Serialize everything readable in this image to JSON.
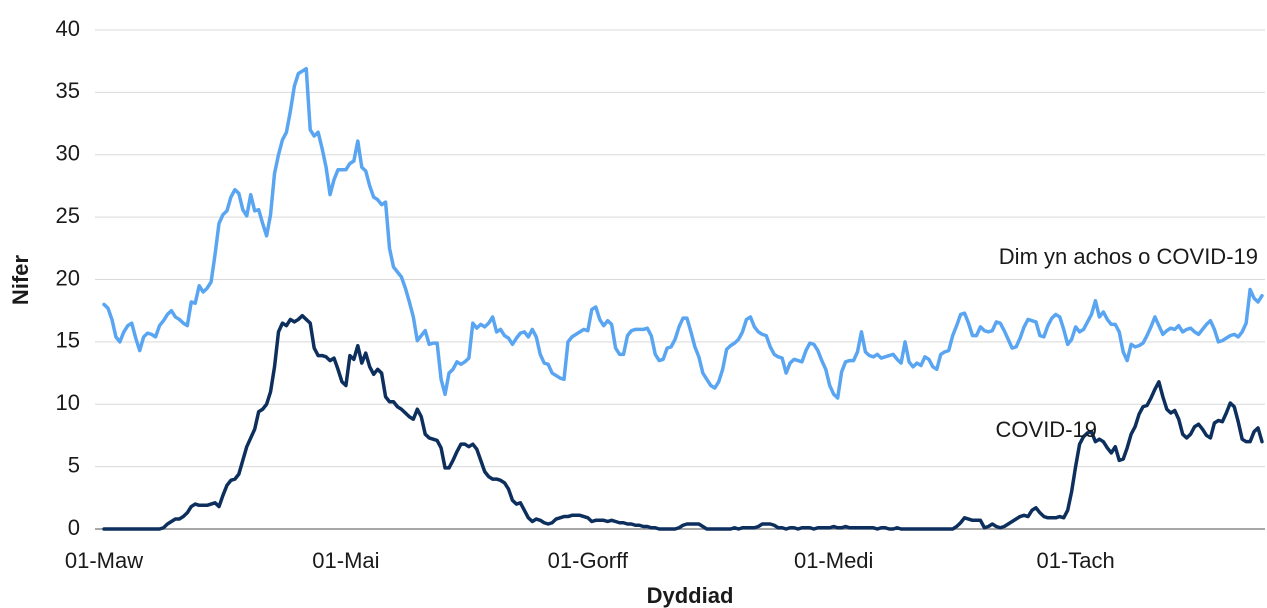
{
  "chart_data": {
    "type": "line",
    "x_label": "Dyddiad",
    "y_label": "Nifer",
    "ylim": [
      0,
      40
    ],
    "yticks": [
      0,
      5,
      10,
      15,
      20,
      25,
      30,
      35,
      40
    ],
    "grid": true,
    "categories": [
      "01-Maw",
      null,
      null,
      null,
      null,
      null,
      null,
      null,
      null,
      null,
      null,
      null,
      null,
      null,
      null,
      null,
      null,
      null,
      null,
      null,
      null,
      null,
      null,
      null,
      null,
      null,
      null,
      null,
      null,
      null,
      null,
      null,
      null,
      null,
      null,
      null,
      null,
      null,
      null,
      null,
      null,
      null,
      null,
      null,
      null,
      null,
      null,
      null,
      null,
      null,
      null,
      null,
      null,
      null,
      null,
      null,
      null,
      null,
      null,
      null,
      null,
      "01-Mai",
      null,
      null,
      null,
      null,
      null,
      null,
      null,
      null,
      null,
      null,
      null,
      null,
      null,
      null,
      null,
      null,
      null,
      null,
      null,
      null,
      null,
      null,
      null,
      null,
      null,
      null,
      null,
      null,
      null,
      null,
      null,
      null,
      null,
      null,
      null,
      null,
      null,
      null,
      null,
      null,
      null,
      null,
      null,
      null,
      null,
      null,
      null,
      null,
      null,
      null,
      null,
      null,
      null,
      null,
      null,
      null,
      null,
      null,
      null,
      null,
      "01-Gorff",
      null,
      null,
      null,
      null,
      null,
      null,
      null,
      null,
      null,
      null,
      null,
      null,
      null,
      null,
      null,
      null,
      null,
      null,
      null,
      null,
      null,
      null,
      null,
      null,
      null,
      null,
      null,
      null,
      null,
      null,
      null,
      null,
      null,
      null,
      null,
      null,
      null,
      null,
      null,
      null,
      null,
      null,
      null,
      null,
      null,
      null,
      null,
      null,
      null,
      null,
      null,
      null,
      null,
      null,
      null,
      null,
      null,
      null,
      null,
      null,
      null,
      "01-Medi",
      null,
      null,
      null,
      null,
      null,
      null,
      null,
      null,
      null,
      null,
      null,
      null,
      null,
      null,
      null,
      null,
      null,
      null,
      null,
      null,
      null,
      null,
      null,
      null,
      null,
      null,
      null,
      null,
      null,
      null,
      null,
      null,
      null,
      null,
      null,
      null,
      null,
      null,
      null,
      null,
      null,
      null,
      null,
      null,
      null,
      null,
      null,
      null,
      null,
      null,
      null,
      null,
      null,
      null,
      null,
      null,
      null,
      null,
      null,
      null,
      "01-Tach",
      null,
      null,
      null,
      null,
      null,
      null,
      null,
      null,
      null,
      null,
      null,
      null,
      null,
      null,
      null,
      null,
      null,
      null,
      null,
      null,
      null,
      null,
      null,
      null,
      null,
      null,
      null,
      null,
      null,
      null,
      null,
      null,
      null,
      null,
      null,
      null,
      null,
      null,
      null,
      null,
      null,
      null,
      null,
      null,
      null,
      null,
      null
    ],
    "series": [
      {
        "name": "Dim yn achos o COVID-19",
        "color": "#5aa5f2",
        "values": [
          18.0,
          17.7,
          16.8,
          15.4,
          15.0,
          15.8,
          16.3,
          16.5,
          15.3,
          14.3,
          15.4,
          15.7,
          15.6,
          15.4,
          16.3,
          16.7,
          17.2,
          17.5,
          17.0,
          16.8,
          16.5,
          16.3,
          18.2,
          18.1,
          19.5,
          19.0,
          19.3,
          19.8,
          22.0,
          24.5,
          25.2,
          25.5,
          26.6,
          27.2,
          26.9,
          25.6,
          25.1,
          26.8,
          25.5,
          25.6,
          24.5,
          23.5,
          25.2,
          28.5,
          30.0,
          31.2,
          31.8,
          33.5,
          35.5,
          36.5,
          36.7,
          36.9,
          32.0,
          31.5,
          31.8,
          30.5,
          29.0,
          26.8,
          28.0,
          28.8,
          28.8,
          28.8,
          29.3,
          29.5,
          31.1,
          29.0,
          28.7,
          27.5,
          26.6,
          26.4,
          26.0,
          26.2,
          22.5,
          21.0,
          20.6,
          20.2,
          19.3,
          18.2,
          17.0,
          15.1,
          15.5,
          15.9,
          14.8,
          14.9,
          14.9,
          12.0,
          10.8,
          12.5,
          12.8,
          13.4,
          13.2,
          13.4,
          13.7,
          16.5,
          16.1,
          16.4,
          16.2,
          16.5,
          17.0,
          15.8,
          16.0,
          15.5,
          15.3,
          14.8,
          15.3,
          15.7,
          15.8,
          15.4,
          16.0,
          15.4,
          14.0,
          13.3,
          13.2,
          12.5,
          12.3,
          12.1,
          12.0,
          15.0,
          15.4,
          15.6,
          15.8,
          16.0,
          15.9,
          17.6,
          17.8,
          16.8,
          16.3,
          16.7,
          16.4,
          14.5,
          14.0,
          14.0,
          15.5,
          15.9,
          16.0,
          16.0,
          16.0,
          16.1,
          15.5,
          14.0,
          13.5,
          13.6,
          14.5,
          14.6,
          15.2,
          16.2,
          16.9,
          16.9,
          15.8,
          14.6,
          13.8,
          12.5,
          12.0,
          11.5,
          11.3,
          11.8,
          12.8,
          14.4,
          14.7,
          14.9,
          15.2,
          15.8,
          16.8,
          17.0,
          16.2,
          15.8,
          15.6,
          15.5,
          14.6,
          14.0,
          13.8,
          13.7,
          12.5,
          13.3,
          13.6,
          13.5,
          13.4,
          14.3,
          14.9,
          14.8,
          14.3,
          13.5,
          12.8,
          11.5,
          10.8,
          10.5,
          12.6,
          13.4,
          13.5,
          13.5,
          14.2,
          15.8,
          14.2,
          13.9,
          13.8,
          14.0,
          13.7,
          13.8,
          13.9,
          14.0,
          13.6,
          13.3,
          15.0,
          13.4,
          13.0,
          13.3,
          13.1,
          13.8,
          13.6,
          13.0,
          12.8,
          14.0,
          14.2,
          14.3,
          15.5,
          16.3,
          17.2,
          17.3,
          16.5,
          15.5,
          15.5,
          16.2,
          15.9,
          15.8,
          15.9,
          16.6,
          16.5,
          15.9,
          15.2,
          14.5,
          14.6,
          15.3,
          16.2,
          16.8,
          16.7,
          16.6,
          15.5,
          15.4,
          16.3,
          16.9,
          17.2,
          17.0,
          16.0,
          14.8,
          15.2,
          16.2,
          15.8,
          16.0,
          16.6,
          17.2,
          18.3,
          17.0,
          17.4,
          16.8,
          16.4,
          16.4,
          15.8,
          14.2,
          13.5,
          14.8,
          14.6,
          14.7,
          14.9,
          15.5,
          16.2,
          17.0,
          16.3,
          15.6,
          15.9,
          16.1,
          16.0,
          16.3,
          15.8,
          16.0,
          16.1,
          15.8,
          15.6,
          16.0,
          16.4,
          16.7,
          16.0,
          15.0,
          15.1,
          15.3,
          15.5,
          15.6,
          15.4,
          15.8,
          16.5,
          19.2,
          18.5,
          18.2,
          18.7
        ]
      },
      {
        "name": "COVID-19",
        "color": "#0d2f5e",
        "values": [
          0,
          0,
          0,
          0,
          0,
          0,
          0,
          0,
          0,
          0,
          0,
          0,
          0,
          0,
          0,
          0.1,
          0.4,
          0.6,
          0.8,
          0.8,
          1.0,
          1.3,
          1.8,
          2.0,
          1.9,
          1.9,
          1.9,
          2.0,
          2.1,
          1.8,
          2.7,
          3.5,
          3.9,
          4.0,
          4.4,
          5.5,
          6.6,
          7.3,
          8.0,
          9.4,
          9.6,
          10.0,
          11.0,
          13.0,
          15.8,
          16.5,
          16.3,
          16.8,
          16.6,
          16.8,
          17.1,
          16.8,
          16.5,
          14.5,
          13.9,
          13.9,
          13.8,
          13.5,
          13.7,
          12.8,
          11.8,
          11.5,
          13.9,
          13.6,
          14.7,
          13.3,
          14.1,
          13.0,
          12.4,
          12.8,
          12.5,
          10.6,
          10.2,
          10.2,
          9.8,
          9.6,
          9.3,
          9.0,
          8.8,
          9.6,
          9.0,
          7.6,
          7.3,
          7.2,
          7.1,
          6.5,
          4.9,
          4.9,
          5.5,
          6.2,
          6.8,
          6.8,
          6.6,
          6.8,
          6.4,
          5.5,
          4.6,
          4.2,
          4.0,
          4.0,
          3.9,
          3.7,
          3.2,
          2.3,
          2.0,
          2.1,
          1.5,
          0.9,
          0.6,
          0.8,
          0.7,
          0.5,
          0.4,
          0.5,
          0.8,
          0.9,
          1.0,
          1.0,
          1.1,
          1.1,
          1.1,
          1.0,
          0.9,
          0.6,
          0.7,
          0.7,
          0.7,
          0.6,
          0.7,
          0.6,
          0.5,
          0.5,
          0.4,
          0.4,
          0.3,
          0.3,
          0.2,
          0.2,
          0.1,
          0.1,
          0,
          0,
          0,
          0,
          0,
          0.1,
          0.3,
          0.4,
          0.4,
          0.4,
          0.4,
          0.2,
          0,
          0,
          0,
          0,
          0,
          0,
          0,
          0.1,
          0,
          0.1,
          0.1,
          0.1,
          0.1,
          0.2,
          0.4,
          0.4,
          0.4,
          0.3,
          0.1,
          0.1,
          0,
          0.1,
          0.1,
          0,
          0.1,
          0.1,
          0.1,
          0,
          0.1,
          0.1,
          0.1,
          0.1,
          0.2,
          0.1,
          0.1,
          0.2,
          0.1,
          0.1,
          0.1,
          0.1,
          0.1,
          0.1,
          0.1,
          0,
          0.1,
          0.1,
          0,
          0,
          0.1,
          0,
          0,
          0,
          0,
          0,
          0,
          0,
          0,
          0,
          0,
          0,
          0,
          0,
          0,
          0.2,
          0.5,
          0.9,
          0.8,
          0.7,
          0.7,
          0.7,
          0.1,
          0.2,
          0.4,
          0.2,
          0.1,
          0.2,
          0.4,
          0.6,
          0.8,
          1.0,
          1.1,
          1.0,
          1.5,
          1.7,
          1.3,
          1.0,
          0.9,
          0.9,
          0.9,
          1.0,
          0.9,
          1.5,
          3.0,
          5.0,
          6.8,
          7.4,
          7.7,
          7.8,
          7.0,
          7.2,
          7.0,
          6.5,
          6.1,
          6.6,
          5.5,
          5.6,
          6.5,
          7.6,
          8.2,
          9.2,
          9.8,
          9.9,
          10.5,
          11.2,
          11.8,
          10.6,
          9.6,
          9.3,
          9.5,
          8.8,
          7.6,
          7.3,
          7.6,
          8.2,
          8.4,
          8.0,
          7.5,
          7.3,
          8.5,
          8.7,
          8.6,
          9.3,
          10.1,
          9.8,
          8.6,
          7.2,
          7.0,
          7.0,
          7.8,
          8.1,
          7.0
        ]
      }
    ]
  }
}
